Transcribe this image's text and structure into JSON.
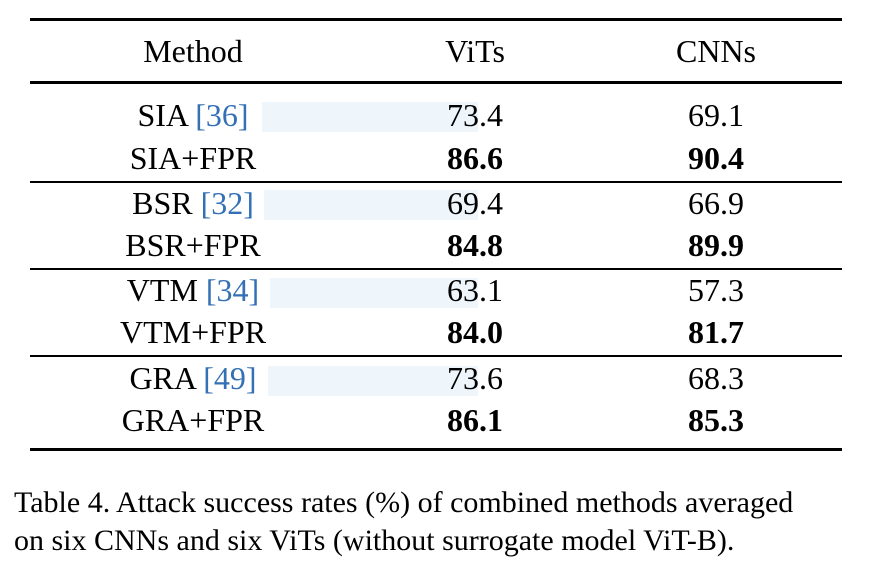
{
  "table": {
    "headers": {
      "method": "Method",
      "vits": "ViTs",
      "cnns": "CNNs"
    },
    "rows": [
      {
        "method": "SIA",
        "cite": "36",
        "vits": "73.4",
        "cnns": "69.1",
        "bold": false
      },
      {
        "method": "SIA+FPR",
        "cite": "",
        "vits": "86.6",
        "cnns": "90.4",
        "bold": true
      },
      {
        "method": "BSR",
        "cite": "32",
        "vits": "69.4",
        "cnns": "66.9",
        "bold": false
      },
      {
        "method": "BSR+FPR",
        "cite": "",
        "vits": "84.8",
        "cnns": "89.9",
        "bold": true
      },
      {
        "method": "VTM",
        "cite": "34",
        "vits": "63.1",
        "cnns": "57.3",
        "bold": false
      },
      {
        "method": "VTM+FPR",
        "cite": "",
        "vits": "84.0",
        "cnns": "81.7",
        "bold": true
      },
      {
        "method": "GRA",
        "cite": "49",
        "vits": "73.6",
        "cnns": "68.3",
        "bold": false
      },
      {
        "method": "GRA+FPR",
        "cite": "",
        "vits": "86.1",
        "cnns": "85.3",
        "bold": true
      }
    ]
  },
  "caption": {
    "line1": "Table 4.  Attack success rates (%) of combined methods averaged",
    "line2": "on six CNNs and six ViTs (without surrogate model ViT-B)."
  }
}
